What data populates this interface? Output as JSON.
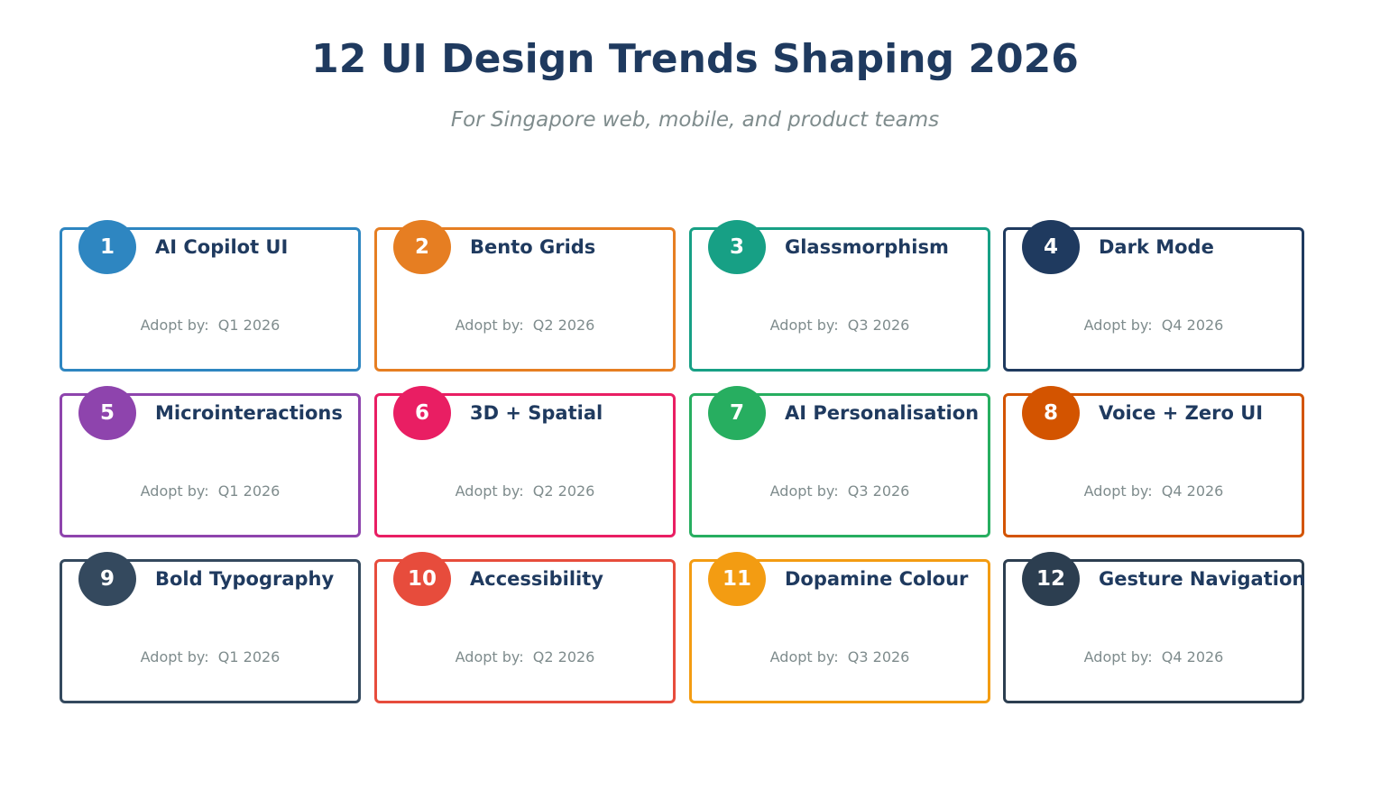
{
  "title": "12 UI Design Trends Shaping 2026",
  "subtitle": "For Singapore web, mobile, and product teams",
  "adopt_prefix": "Adopt by:",
  "trends": [
    {
      "number": "1",
      "name": "AI Copilot UI",
      "quarter": "Q1 2026",
      "color": "#2e86c1"
    },
    {
      "number": "2",
      "name": "Bento Grids",
      "quarter": "Q2 2026",
      "color": "#e67e22"
    },
    {
      "number": "3",
      "name": "Glassmorphism",
      "quarter": "Q3 2026",
      "color": "#17a085"
    },
    {
      "number": "4",
      "name": "Dark Mode",
      "quarter": "Q4 2026",
      "color": "#1f3a5f"
    },
    {
      "number": "5",
      "name": "Microinteractions",
      "quarter": "Q1 2026",
      "color": "#8e44ad"
    },
    {
      "number": "6",
      "name": "3D + Spatial",
      "quarter": "Q2 2026",
      "color": "#e91e63"
    },
    {
      "number": "7",
      "name": "AI Personalisation",
      "quarter": "Q3 2026",
      "color": "#27ae60"
    },
    {
      "number": "8",
      "name": "Voice + Zero UI",
      "quarter": "Q4 2026",
      "color": "#d35400"
    },
    {
      "number": "9",
      "name": "Bold Typography",
      "quarter": "Q1 2026",
      "color": "#34495e"
    },
    {
      "number": "10",
      "name": "Accessibility",
      "quarter": "Q2 2026",
      "color": "#e74c3c"
    },
    {
      "number": "11",
      "name": "Dopamine Colour",
      "quarter": "Q3 2026",
      "color": "#f39c12"
    },
    {
      "number": "12",
      "name": "Gesture Navigation",
      "quarter": "Q4 2026",
      "color": "#2c3e50"
    }
  ]
}
